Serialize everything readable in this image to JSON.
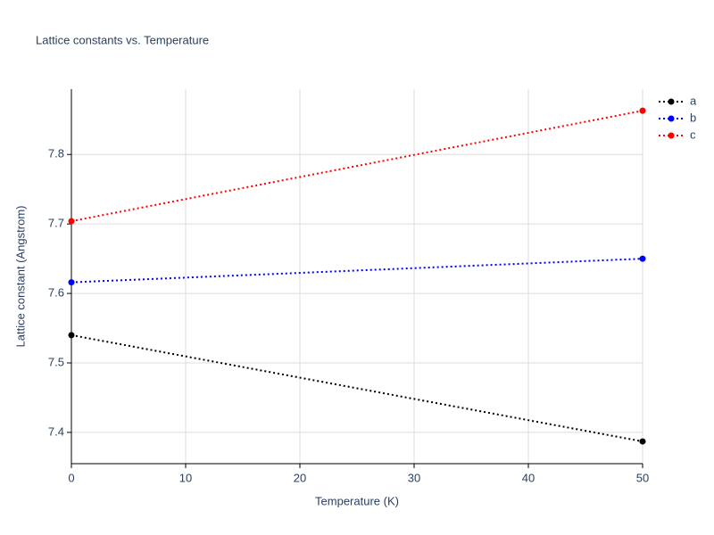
{
  "chart_data": {
    "type": "line",
    "title": "Lattice constants vs. Temperature",
    "x_label": "Temperature (K)",
    "y_label": "Lattice constant (Angstrom)",
    "x": [
      0,
      50
    ],
    "series": [
      {
        "name": "a",
        "color": "#000000",
        "values": [
          7.54,
          7.387
        ]
      },
      {
        "name": "b",
        "color": "#0000ff",
        "values": [
          7.616,
          7.65
        ]
      },
      {
        "name": "c",
        "color": "#ff0000",
        "values": [
          7.704,
          7.863
        ]
      }
    ],
    "xlim": [
      0,
      50
    ],
    "xticks": [
      0,
      10,
      20,
      30,
      40,
      50
    ],
    "ylim": [
      7.355,
      7.894
    ],
    "yticks": [
      7.4,
      7.5,
      7.6,
      7.7,
      7.8
    ],
    "grid": true,
    "legend": "right"
  }
}
